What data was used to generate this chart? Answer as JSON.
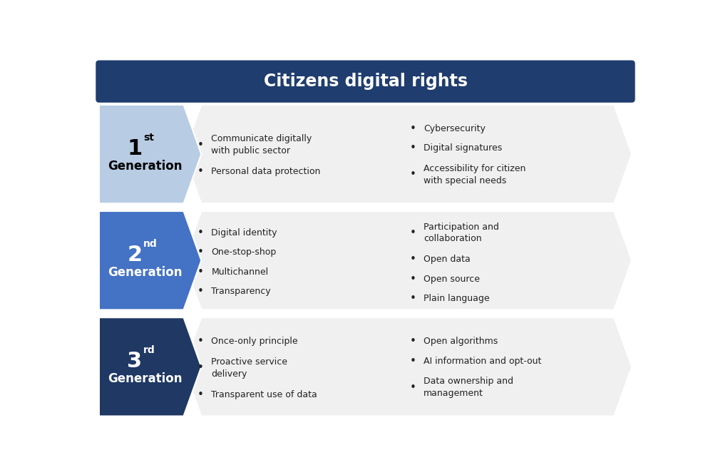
{
  "title": "Citizens digital rights",
  "title_bg": "#1f3d6e",
  "title_text_color": "#ffffff",
  "background_color": "#f0f0f0",
  "outer_bg": "#ffffff",
  "rows": [
    {
      "label_line1": "1",
      "label_sup": "st",
      "label_line2": "Generation",
      "arrow_color": "#b8cce4",
      "text_color": "#000000",
      "left_bullets": [
        "Communicate digitally\nwith public sector",
        "Personal data protection"
      ],
      "right_bullets": [
        "Cybersecurity",
        "Digital signatures",
        "Accessibility for citizen\nwith special needs"
      ]
    },
    {
      "label_line1": "2",
      "label_sup": "nd",
      "label_line2": "Generation",
      "arrow_color": "#4472c4",
      "text_color": "#ffffff",
      "left_bullets": [
        "Digital identity",
        "One-stop-shop",
        "Multichannel",
        "Transparency"
      ],
      "right_bullets": [
        "Participation and\ncollaboration",
        "Open data",
        "Open source",
        "Plain language"
      ]
    },
    {
      "label_line1": "3",
      "label_sup": "rd",
      "label_line2": "Generation",
      "arrow_color": "#1f3864",
      "text_color": "#ffffff",
      "left_bullets": [
        "Once-only principle",
        "Proactive service\ndelivery",
        "Transparent use of data"
      ],
      "right_bullets": [
        "Open algorithms",
        "AI information and opt-out",
        "Data ownership and\nmanagement"
      ]
    }
  ]
}
